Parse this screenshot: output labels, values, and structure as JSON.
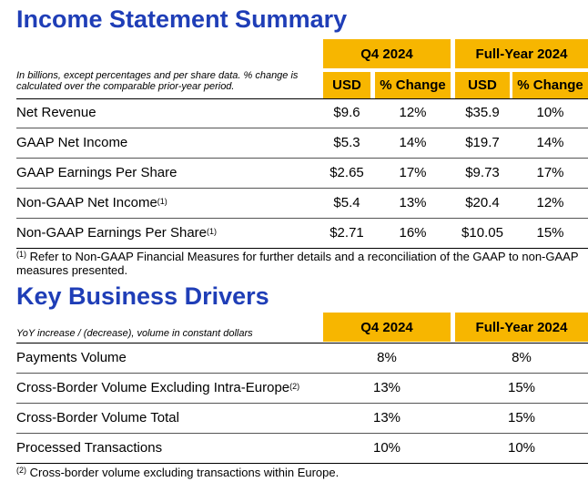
{
  "income": {
    "title": "Income Statement Summary",
    "note": "In billions, except percentages and per share data. % change is calculated over the comparable prior-year period.",
    "period_q4": "Q4 2024",
    "period_fy": "Full-Year 2024",
    "col_usd": "USD",
    "col_change": "% Change",
    "rows": [
      {
        "label": "Net Revenue",
        "sup": "",
        "q4_usd": "$9.6",
        "q4_change": "12%",
        "fy_usd": "$35.9",
        "fy_change": "10%"
      },
      {
        "label": "GAAP Net Income",
        "sup": "",
        "q4_usd": "$5.3",
        "q4_change": "14%",
        "fy_usd": "$19.7",
        "fy_change": "14%"
      },
      {
        "label": "GAAP Earnings Per Share",
        "sup": "",
        "q4_usd": "$2.65",
        "q4_change": "17%",
        "fy_usd": "$9.73",
        "fy_change": "17%"
      },
      {
        "label": "Non-GAAP Net Income",
        "sup": "(1)",
        "q4_usd": "$5.4",
        "q4_change": "13%",
        "fy_usd": "$20.4",
        "fy_change": "12%"
      },
      {
        "label": "Non-GAAP Earnings Per Share",
        "sup": "(1)",
        "q4_usd": "$2.71",
        "q4_change": "16%",
        "fy_usd": "$10.05",
        "fy_change": "15%"
      }
    ],
    "footnote_marker": "(1)",
    "footnote": "Refer to Non-GAAP Financial Measures for further details and a reconciliation of the GAAP to non-GAAP measures presented."
  },
  "drivers": {
    "title": "Key Business Drivers",
    "note": "YoY increase / (decrease), volume in constant dollars",
    "period_q4": "Q4 2024",
    "period_fy": "Full-Year 2024",
    "rows": [
      {
        "label": "Payments Volume",
        "sup": "",
        "q4": "8%",
        "fy": "8%"
      },
      {
        "label": "Cross-Border Volume Excluding Intra-Europe",
        "sup": "(2)",
        "q4": "13%",
        "fy": "15%"
      },
      {
        "label": "Cross-Border Volume Total",
        "sup": "",
        "q4": "13%",
        "fy": "15%"
      },
      {
        "label": "Processed Transactions",
        "sup": "",
        "q4": "10%",
        "fy": "10%"
      }
    ],
    "footnote_marker": "(2)",
    "footnote": "Cross-border volume excluding transactions within Europe."
  }
}
